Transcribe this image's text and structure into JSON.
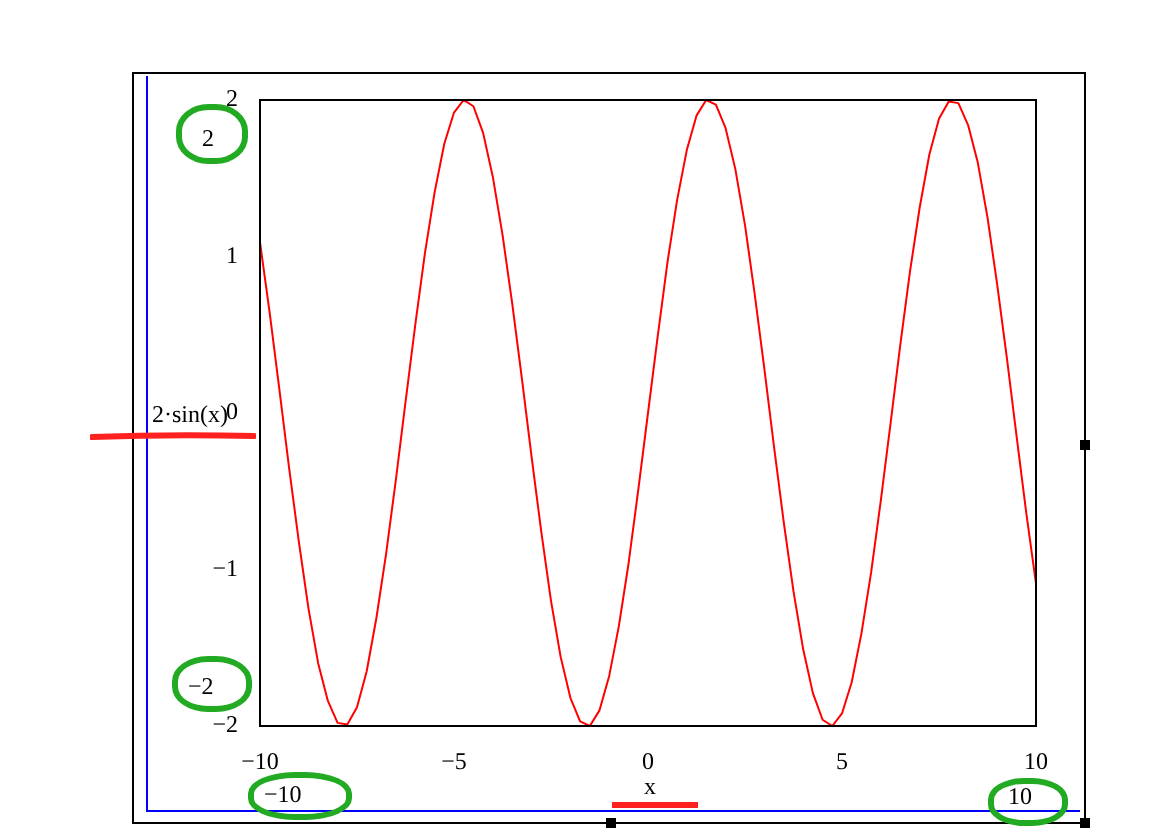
{
  "chart_data": {
    "type": "line",
    "xlabel": "x",
    "ylabel": "2·sin(x)",
    "annotations": [
      "2",
      "−2",
      "−10",
      "10"
    ],
    "x": [
      -10,
      -9.75,
      -9.5,
      -9.25,
      -9,
      -8.75,
      -8.5,
      -8.25,
      -8,
      -7.75,
      -7.5,
      -7.25,
      -7,
      -6.75,
      -6.5,
      -6.25,
      -6,
      -5.75,
      -5.5,
      -5.25,
      -5,
      -4.75,
      -4.5,
      -4.25,
      -4,
      -3.75,
      -3.5,
      -3.25,
      -3,
      -2.75,
      -2.5,
      -2.25,
      -2,
      -1.75,
      -1.5,
      -1.25,
      -1,
      -0.75,
      -0.5,
      -0.25,
      0,
      0.25,
      0.5,
      0.75,
      1,
      1.25,
      1.5,
      1.75,
      2,
      2.25,
      2.5,
      2.75,
      3,
      3.25,
      3.5,
      3.75,
      4,
      4.25,
      4.5,
      4.75,
      5,
      5.25,
      5.5,
      5.75,
      6,
      6.25,
      6.5,
      6.75,
      7,
      7.25,
      7.5,
      7.75,
      8,
      8.25,
      8.5,
      8.75,
      9,
      9.25,
      9.5,
      9.75,
      10
    ],
    "series": [
      {
        "color": "#ff0000",
        "values": [
          1.09,
          0.64,
          0.15,
          -0.35,
          -0.82,
          -1.25,
          -1.6,
          -1.84,
          -1.98,
          -1.99,
          -1.88,
          -1.65,
          -1.31,
          -0.9,
          -0.43,
          0.07,
          0.56,
          1.02,
          1.41,
          1.72,
          1.92,
          2.0,
          1.96,
          1.79,
          1.51,
          1.14,
          0.7,
          0.22,
          -0.28,
          -0.76,
          -1.2,
          -1.56,
          -1.82,
          -1.97,
          -2.0,
          -1.9,
          -1.68,
          -1.36,
          -0.96,
          -0.49,
          0,
          0.49,
          0.96,
          1.36,
          1.68,
          1.9,
          2.0,
          1.97,
          1.82,
          1.56,
          1.2,
          0.76,
          0.28,
          -0.22,
          -0.7,
          -1.14,
          -1.51,
          -1.79,
          -1.96,
          -2.0,
          -1.92,
          -1.72,
          -1.41,
          -1.02,
          -0.56,
          -0.07,
          0.43,
          0.9,
          1.31,
          1.65,
          1.88,
          1.99,
          1.98,
          1.84,
          1.6,
          1.25,
          0.82,
          0.35,
          -0.15,
          -0.64,
          -1.09
        ]
      }
    ],
    "xlim": [
      -10,
      10
    ],
    "ylim": [
      -2,
      2
    ],
    "xticks": [
      -10,
      -5,
      0,
      5,
      10
    ],
    "yticks": [
      -2,
      -1,
      0,
      1,
      2
    ],
    "grid": false,
    "legend": false,
    "marker": "none",
    "line_style": "solid"
  }
}
